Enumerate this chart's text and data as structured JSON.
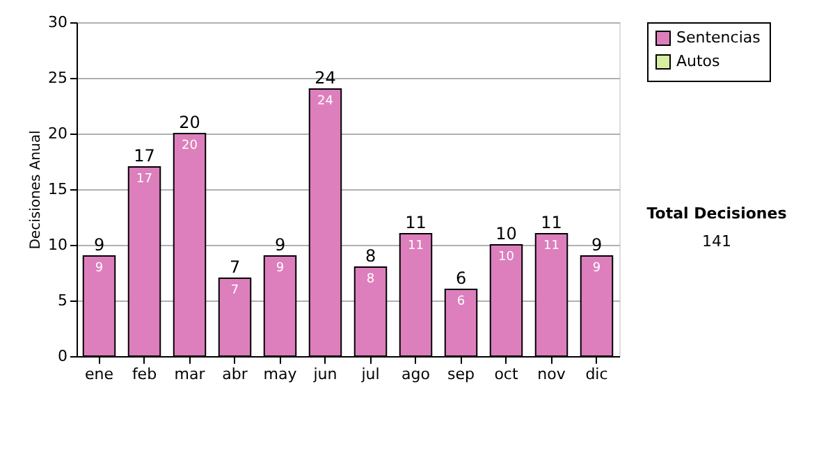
{
  "chart_data": {
    "type": "bar",
    "ylabel": "Decisiones Anual",
    "categories": [
      "ene",
      "feb",
      "mar",
      "abr",
      "may",
      "jun",
      "jul",
      "ago",
      "sep",
      "oct",
      "nov",
      "dic"
    ],
    "series": [
      {
        "name": "Sentencias",
        "color": "#dd7fbd",
        "values": [
          9,
          17,
          20,
          7,
          9,
          24,
          8,
          11,
          6,
          10,
          11,
          9
        ],
        "value_labels": [
          "9",
          "17",
          "20",
          "7",
          "9",
          "24",
          "8",
          "11",
          "6",
          "10",
          "11",
          "9"
        ]
      },
      {
        "name": "Autos",
        "color": "#d6eea0",
        "values": [
          0,
          0,
          0,
          0,
          0,
          0,
          0,
          0,
          0,
          0,
          0,
          0
        ]
      }
    ],
    "stacked": true,
    "totals": [
      "9",
      "17",
      "20",
      "7",
      "9",
      "24",
      "8",
      "11",
      "6",
      "10",
      "11",
      "9"
    ],
    "ylim": [
      0,
      30
    ],
    "yticks": [
      0,
      5,
      10,
      15,
      20,
      25,
      30
    ],
    "grid": "y",
    "legend": "right",
    "annotations": [
      "Total Decisiones",
      "141"
    ]
  }
}
